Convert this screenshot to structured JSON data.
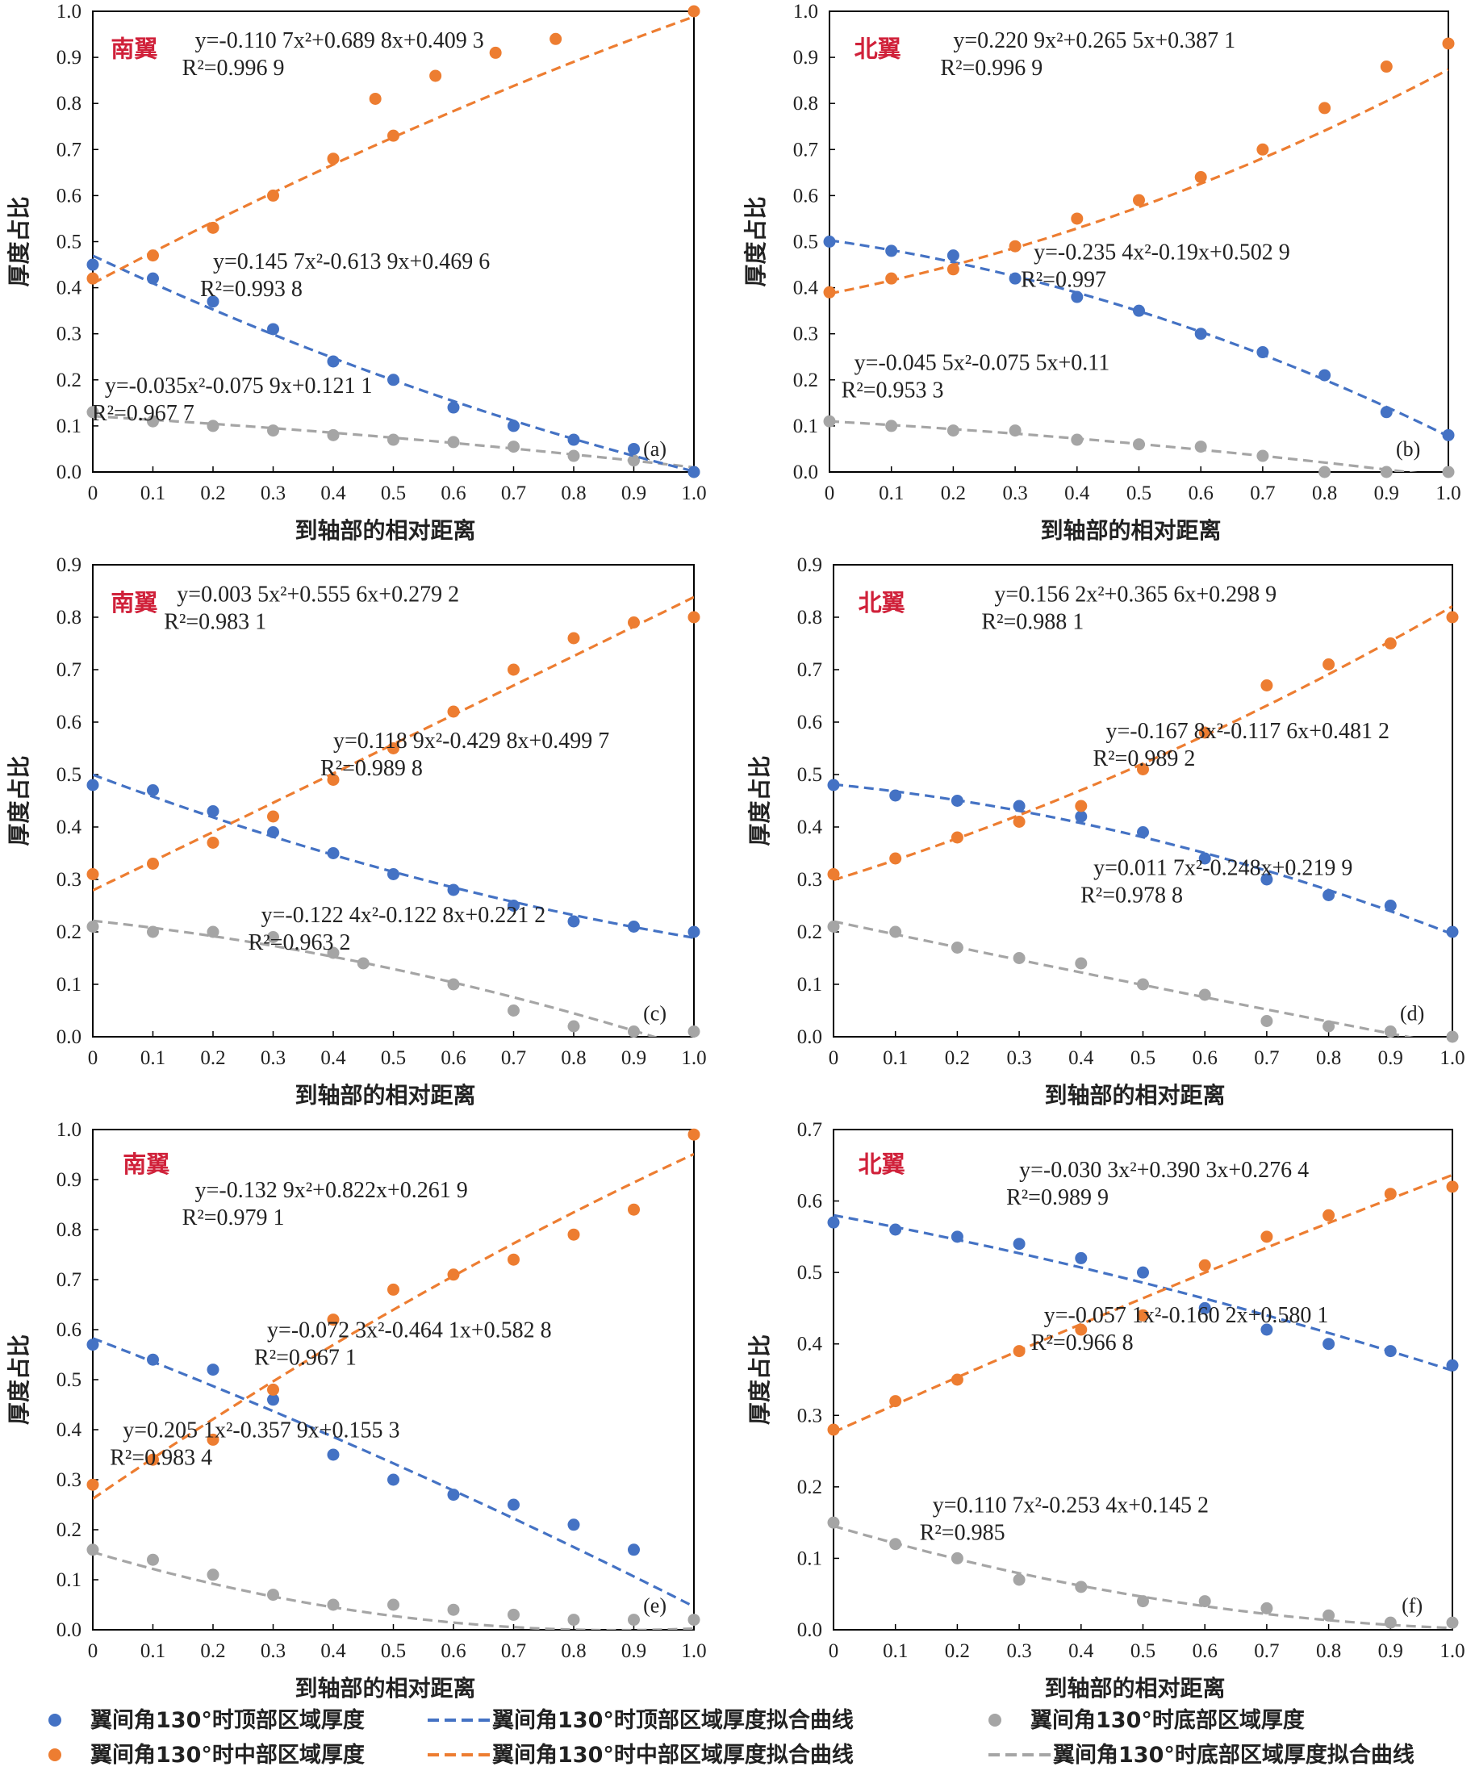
{
  "chart_data": [
    {
      "type": "scatter",
      "panel_label": "(a)",
      "wing_label": "南翼",
      "xlabel": "到轴部的相对距离",
      "ylabel": "厚度占比",
      "xlim": [
        0,
        1.0
      ],
      "ylim": [
        0,
        1.0
      ],
      "xticks": [
        "0",
        "0.1",
        "0.2",
        "0.3",
        "0.4",
        "0.5",
        "0.6",
        "0.7",
        "0.8",
        "0.9",
        "1.0"
      ],
      "yticks": [
        "0.0",
        "0.1",
        "0.2",
        "0.3",
        "0.4",
        "0.5",
        "0.6",
        "0.7",
        "0.8",
        "0.9",
        "1.0"
      ],
      "series": [
        {
          "key": "top",
          "x": [
            0,
            0.1,
            0.2,
            0.3,
            0.4,
            0.5,
            0.6,
            0.7,
            0.8,
            0.9,
            1.0
          ],
          "y": [
            0.45,
            0.42,
            0.37,
            0.31,
            0.24,
            0.2,
            0.14,
            0.1,
            0.07,
            0.05,
            0.0
          ],
          "fit": [
            0.1457,
            -0.6139,
            0.4696
          ],
          "eq": "y=0.145 7x²-0.613 9x+0.469 6",
          "r2": "R²=0.993 8"
        },
        {
          "key": "mid",
          "x": [
            0,
            0.1,
            0.2,
            0.3,
            0.4,
            0.47,
            0.5,
            0.57,
            0.67,
            0.77,
            1.0
          ],
          "y": [
            0.42,
            0.47,
            0.53,
            0.6,
            0.68,
            0.81,
            0.73,
            0.86,
            0.91,
            0.94,
            1.0
          ],
          "fit": [
            -0.1107,
            0.6898,
            0.4093
          ],
          "eq": "y=-0.110 7x²+0.689 8x+0.409 3",
          "r2": "R²=0.996 9"
        },
        {
          "key": "bot",
          "x": [
            0,
            0.1,
            0.2,
            0.3,
            0.4,
            0.5,
            0.6,
            0.7,
            0.8,
            0.9,
            1.0
          ],
          "y": [
            0.13,
            0.11,
            0.1,
            0.09,
            0.08,
            0.07,
            0.065,
            0.055,
            0.035,
            0.025,
            0.0
          ],
          "fit": [
            -0.035,
            -0.0759,
            0.1211
          ],
          "eq": "y=-0.035x²-0.075 9x+0.121 1",
          "r2": "R²=0.967 7"
        }
      ]
    },
    {
      "type": "scatter",
      "panel_label": "(b)",
      "wing_label": "北翼",
      "xlabel": "到轴部的相对距离",
      "ylabel": "厚度占比",
      "xlim": [
        0,
        1.0
      ],
      "ylim": [
        0,
        1.0
      ],
      "xticks": [
        "0",
        "0.1",
        "0.2",
        "0.3",
        "0.4",
        "0.5",
        "0.6",
        "0.7",
        "0.8",
        "0.9",
        "1.0"
      ],
      "yticks": [
        "0.0",
        "0.1",
        "0.2",
        "0.3",
        "0.4",
        "0.5",
        "0.6",
        "0.7",
        "0.8",
        "0.9",
        "1.0"
      ],
      "series": [
        {
          "key": "top",
          "x": [
            0,
            0.1,
            0.2,
            0.3,
            0.4,
            0.5,
            0.6,
            0.7,
            0.8,
            0.9,
            1.0
          ],
          "y": [
            0.5,
            0.48,
            0.47,
            0.42,
            0.38,
            0.35,
            0.3,
            0.26,
            0.21,
            0.13,
            0.08
          ],
          "fit": [
            -0.2354,
            -0.19,
            0.5029
          ],
          "eq": "y=-0.235 4x²-0.19x+0.502 9",
          "r2": "R²=0.997"
        },
        {
          "key": "mid",
          "x": [
            0,
            0.1,
            0.2,
            0.3,
            0.4,
            0.5,
            0.6,
            0.7,
            0.8,
            0.9,
            1.0
          ],
          "y": [
            0.39,
            0.42,
            0.44,
            0.49,
            0.55,
            0.59,
            0.64,
            0.7,
            0.79,
            0.88,
            0.93
          ],
          "fit": [
            0.2209,
            0.2655,
            0.3871
          ],
          "eq": "y=0.220 9x²+0.265 5x+0.387 1",
          "r2": "R²=0.996 9"
        },
        {
          "key": "bot",
          "x": [
            0,
            0.1,
            0.2,
            0.3,
            0.4,
            0.5,
            0.6,
            0.7,
            0.8,
            0.9,
            1.0
          ],
          "y": [
            0.11,
            0.1,
            0.09,
            0.09,
            0.07,
            0.06,
            0.055,
            0.035,
            0.0,
            0.0,
            0.0
          ],
          "fit": [
            -0.0455,
            -0.0755,
            0.11
          ],
          "eq": "y=-0.045 5x²-0.075 5x+0.11",
          "r2": "R²=0.953 3"
        }
      ]
    },
    {
      "type": "scatter",
      "panel_label": "(c)",
      "wing_label": "南翼",
      "xlabel": "到轴部的相对距离",
      "ylabel": "厚度占比",
      "xlim": [
        0,
        1.0
      ],
      "ylim": [
        0,
        0.9
      ],
      "xticks": [
        "0",
        "0.1",
        "0.2",
        "0.3",
        "0.4",
        "0.5",
        "0.6",
        "0.7",
        "0.8",
        "0.9",
        "1.0"
      ],
      "yticks": [
        "0.0",
        "0.1",
        "0.2",
        "0.3",
        "0.4",
        "0.5",
        "0.6",
        "0.7",
        "0.8",
        "0.9"
      ],
      "series": [
        {
          "key": "top",
          "x": [
            0,
            0.1,
            0.2,
            0.3,
            0.4,
            0.5,
            0.6,
            0.7,
            0.8,
            0.9,
            1.0
          ],
          "y": [
            0.48,
            0.47,
            0.43,
            0.39,
            0.35,
            0.31,
            0.28,
            0.25,
            0.22,
            0.21,
            0.2
          ],
          "fit": [
            0.1189,
            -0.4298,
            0.4997
          ],
          "eq": "y=0.118 9x²-0.429 8x+0.499 7",
          "r2": "R²=0.989 8"
        },
        {
          "key": "mid",
          "x": [
            0,
            0.1,
            0.2,
            0.3,
            0.4,
            0.5,
            0.6,
            0.7,
            0.8,
            0.9,
            1.0
          ],
          "y": [
            0.31,
            0.33,
            0.37,
            0.42,
            0.49,
            0.55,
            0.62,
            0.7,
            0.76,
            0.79,
            0.8
          ],
          "fit": [
            0.0035,
            0.5556,
            0.2792
          ],
          "eq": "y=0.003 5x²+0.555 6x+0.279 2",
          "r2": "R²=0.983 1"
        },
        {
          "key": "bot",
          "x": [
            0,
            0.1,
            0.2,
            0.3,
            0.4,
            0.45,
            0.6,
            0.7,
            0.8,
            0.9,
            1.0
          ],
          "y": [
            0.21,
            0.2,
            0.2,
            0.19,
            0.16,
            0.14,
            0.1,
            0.05,
            0.02,
            0.01,
            0.01
          ],
          "fit": [
            -0.1224,
            -0.1228,
            0.2212
          ],
          "eq": "y=-0.122 4x²-0.122 8x+0.221 2",
          "r2": "R²=0.963 2"
        }
      ]
    },
    {
      "type": "scatter",
      "panel_label": "(d)",
      "wing_label": "北翼",
      "xlabel": "到轴部的相对距离",
      "ylabel": "厚度占比",
      "xlim": [
        0,
        1.0
      ],
      "ylim": [
        0,
        0.9
      ],
      "xticks": [
        "0",
        "0.1",
        "0.2",
        "0.3",
        "0.4",
        "0.5",
        "0.6",
        "0.7",
        "0.8",
        "0.9",
        "1.0"
      ],
      "yticks": [
        "0.0",
        "0.1",
        "0.2",
        "0.3",
        "0.4",
        "0.5",
        "0.6",
        "0.7",
        "0.8",
        "0.9"
      ],
      "series": [
        {
          "key": "top",
          "x": [
            0,
            0.1,
            0.2,
            0.3,
            0.4,
            0.5,
            0.6,
            0.7,
            0.8,
            0.9,
            1.0
          ],
          "y": [
            0.48,
            0.46,
            0.45,
            0.44,
            0.42,
            0.39,
            0.34,
            0.3,
            0.27,
            0.25,
            0.2
          ],
          "fit": [
            -0.1678,
            -0.1176,
            0.4812
          ],
          "eq": "y=-0.167 8x²-0.117 6x+0.481 2",
          "r2": "R²=0.989 2"
        },
        {
          "key": "mid",
          "x": [
            0,
            0.1,
            0.2,
            0.3,
            0.4,
            0.5,
            0.6,
            0.7,
            0.8,
            0.9,
            1.0
          ],
          "y": [
            0.31,
            0.34,
            0.38,
            0.41,
            0.44,
            0.51,
            0.58,
            0.67,
            0.71,
            0.75,
            0.8
          ],
          "fit": [
            0.1562,
            0.3656,
            0.2989
          ],
          "eq": "y=0.156 2x²+0.365 6x+0.298 9",
          "r2": "R²=0.988 1"
        },
        {
          "key": "bot",
          "x": [
            0,
            0.1,
            0.2,
            0.3,
            0.4,
            0.5,
            0.6,
            0.7,
            0.8,
            0.9,
            1.0
          ],
          "y": [
            0.21,
            0.2,
            0.17,
            0.15,
            0.14,
            0.1,
            0.08,
            0.03,
            0.02,
            0.01,
            0.0
          ],
          "fit": [
            0.0117,
            -0.248,
            0.2199
          ],
          "eq": "y=0.011 7x²-0.248x+0.219 9",
          "r2": "R²=0.978 8"
        }
      ]
    },
    {
      "type": "scatter",
      "panel_label": "(e)",
      "wing_label": "南翼",
      "xlabel": "到轴部的相对距离",
      "ylabel": "厚度占比",
      "xlim": [
        0,
        1.0
      ],
      "ylim": [
        0,
        1.0
      ],
      "xticks": [
        "0",
        "0.1",
        "0.2",
        "0.3",
        "0.4",
        "0.5",
        "0.6",
        "0.7",
        "0.8",
        "0.9",
        "1.0"
      ],
      "yticks": [
        "0.0",
        "0.1",
        "0.2",
        "0.3",
        "0.4",
        "0.5",
        "0.6",
        "0.7",
        "0.8",
        "0.9",
        "1.0"
      ],
      "series": [
        {
          "key": "top",
          "x": [
            0,
            0.1,
            0.2,
            0.3,
            0.4,
            0.5,
            0.6,
            0.7,
            0.8,
            0.9
          ],
          "y": [
            0.57,
            0.54,
            0.52,
            0.46,
            0.35,
            0.3,
            0.27,
            0.25,
            0.21,
            0.16
          ],
          "fit": [
            -0.0723,
            -0.4641,
            0.5828
          ],
          "eq": "y=-0.072 3x²-0.464 1x+0.582 8",
          "r2": "R²=0.967 1"
        },
        {
          "key": "mid",
          "x": [
            0,
            0.1,
            0.2,
            0.3,
            0.4,
            0.5,
            0.6,
            0.7,
            0.8,
            0.9,
            1.0
          ],
          "y": [
            0.29,
            0.34,
            0.38,
            0.48,
            0.62,
            0.68,
            0.71,
            0.74,
            0.79,
            0.84,
            0.99
          ],
          "fit": [
            -0.1329,
            0.822,
            0.2619
          ],
          "eq": "y=-0.132 9x²+0.822x+0.261 9",
          "r2": "R²=0.979 1"
        },
        {
          "key": "bot",
          "x": [
            0,
            0.1,
            0.2,
            0.3,
            0.4,
            0.5,
            0.6,
            0.7,
            0.8,
            0.9,
            1.0
          ],
          "y": [
            0.16,
            0.14,
            0.11,
            0.07,
            0.05,
            0.05,
            0.04,
            0.03,
            0.02,
            0.02,
            0.02
          ],
          "fit": [
            0.2051,
            -0.3579,
            0.1553
          ],
          "eq": "y=0.205 1x²-0.357 9x+0.155 3",
          "r2": "R²=0.983 4"
        }
      ]
    },
    {
      "type": "scatter",
      "panel_label": "(f)",
      "wing_label": "北翼",
      "xlabel": "到轴部的相对距离",
      "ylabel": "厚度占比",
      "xlim": [
        0,
        1.0
      ],
      "ylim": [
        0,
        0.7
      ],
      "xticks": [
        "0",
        "0.1",
        "0.2",
        "0.3",
        "0.4",
        "0.5",
        "0.6",
        "0.7",
        "0.8",
        "0.9",
        "1.0"
      ],
      "yticks": [
        "0.0",
        "0.1",
        "0.2",
        "0.3",
        "0.4",
        "0.5",
        "0.6",
        "0.7"
      ],
      "series": [
        {
          "key": "top",
          "x": [
            0,
            0.1,
            0.2,
            0.3,
            0.4,
            0.5,
            0.6,
            0.7,
            0.8,
            0.9,
            1.0
          ],
          "y": [
            0.57,
            0.56,
            0.55,
            0.54,
            0.52,
            0.5,
            0.45,
            0.42,
            0.4,
            0.39,
            0.37
          ],
          "fit": [
            -0.0571,
            -0.1602,
            0.5801
          ],
          "eq": "y=-0.057 1x²-0.160 2x+0.580 1",
          "r2": "R²=0.966 8"
        },
        {
          "key": "mid",
          "x": [
            0,
            0.1,
            0.2,
            0.3,
            0.4,
            0.5,
            0.6,
            0.7,
            0.8,
            0.9,
            1.0
          ],
          "y": [
            0.28,
            0.32,
            0.35,
            0.39,
            0.42,
            0.44,
            0.51,
            0.55,
            0.58,
            0.61,
            0.62
          ],
          "fit": [
            -0.0303,
            0.3903,
            0.2764
          ],
          "eq": "y=-0.030 3x²+0.390 3x+0.276 4",
          "r2": "R²=0.989 9"
        },
        {
          "key": "bot",
          "x": [
            0,
            0.1,
            0.2,
            0.3,
            0.4,
            0.5,
            0.6,
            0.7,
            0.8,
            0.9,
            1.0
          ],
          "y": [
            0.15,
            0.12,
            0.1,
            0.07,
            0.06,
            0.04,
            0.04,
            0.03,
            0.02,
            0.01,
            0.01
          ],
          "fit": [
            0.1107,
            -0.2534,
            0.1452
          ],
          "eq": "y=0.110 7x²-0.253 4x+0.145 2",
          "r2": "R²=0.985"
        }
      ]
    }
  ],
  "legend": [
    {
      "key": "top_pts",
      "kind": "marker",
      "color": "#4472c4",
      "label": "翼间角130°时顶部区域厚度"
    },
    {
      "key": "top_fit",
      "kind": "line",
      "color": "#4472c4",
      "label": "翼间角130°时顶部区域厚度拟合曲线"
    },
    {
      "key": "bot_pts",
      "kind": "marker",
      "color": "#a5a5a5",
      "label": "翼间角130°时底部区域厚度"
    },
    {
      "key": "mid_pts",
      "kind": "marker",
      "color": "#ed7d31",
      "label": "翼间角130°时中部区域厚度"
    },
    {
      "key": "mid_fit",
      "kind": "line",
      "color": "#ed7d31",
      "label": "翼间角130°时中部区域厚度拟合曲线"
    },
    {
      "key": "bot_fit",
      "kind": "line",
      "color": "#a5a5a5",
      "label": "翼间角130°时底部区域厚度拟合曲线"
    }
  ],
  "colors": {
    "top": "#4472c4",
    "mid": "#ed7d31",
    "bot": "#a5a5a5",
    "wing": "#d0213a"
  }
}
